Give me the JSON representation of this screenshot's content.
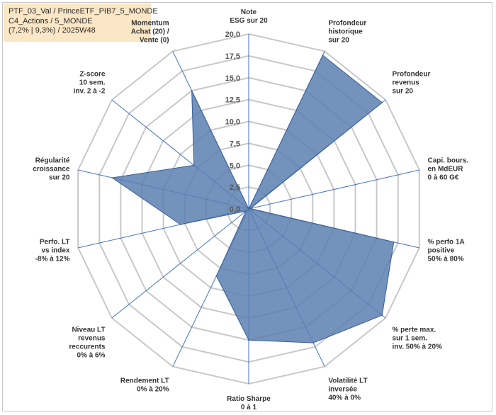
{
  "header": {
    "line1": "PTF_03_Val / PrinceETF_PIB7_5_MONDE",
    "line2": "C4_Actions / 5_MONDE",
    "line3": "(7,2% | 9,3%) / 2025W48"
  },
  "colors": {
    "fill": "#5b7fb0",
    "stroke": "#3a5f96",
    "grid": "#c8c8c8",
    "spokes": "#4472c4",
    "title_bg": "#fbe6c5"
  },
  "chart_data": {
    "type": "radar",
    "rmin": 0,
    "rmax": 20,
    "ticks": [
      "0,0",
      "2,5",
      "5,0",
      "7,5",
      "10,0",
      "12,5",
      "15,0",
      "17,5",
      "20,0"
    ],
    "grid": true,
    "categories": [
      [
        "Note",
        "ESG sur 20"
      ],
      [
        "Profondeur",
        "historique",
        "sur 20"
      ],
      [
        "Profondeur",
        "revenus",
        "sur 20"
      ],
      [
        "Capi. bours.",
        "en MdEUR",
        "0 à 60 G€"
      ],
      [
        "% perfo 1A",
        "positive",
        "50% à 80%"
      ],
      [
        "% perte max.",
        "sur 1 sem.",
        "inv. 50% à 20%"
      ],
      [
        "Volatilité LT",
        "inversée",
        "40% à 0%"
      ],
      [
        "Ratio Sharpe",
        "0 à 1"
      ],
      [
        "Rendement LT",
        "0% à 20%"
      ],
      [
        "Niveau LT",
        "revenus",
        "reccurents",
        "0% à 6%"
      ],
      [
        "Perfo. LT",
        "vs index",
        "-8% à 12%"
      ],
      [
        "Régularité",
        "croissance",
        "sur 20"
      ],
      [
        "Z-score",
        "10 sem.",
        "inv. 2 à -2"
      ],
      [
        "Momentum",
        "Achat (20) /",
        "Vente (0)"
      ]
    ],
    "series": [
      {
        "values": [
          0,
          19.5,
          19.5,
          0.2,
          17.0,
          19.5,
          17.0,
          15.0,
          8.5,
          0.4,
          8.0,
          16.0,
          8.0,
          15.0
        ]
      }
    ]
  }
}
